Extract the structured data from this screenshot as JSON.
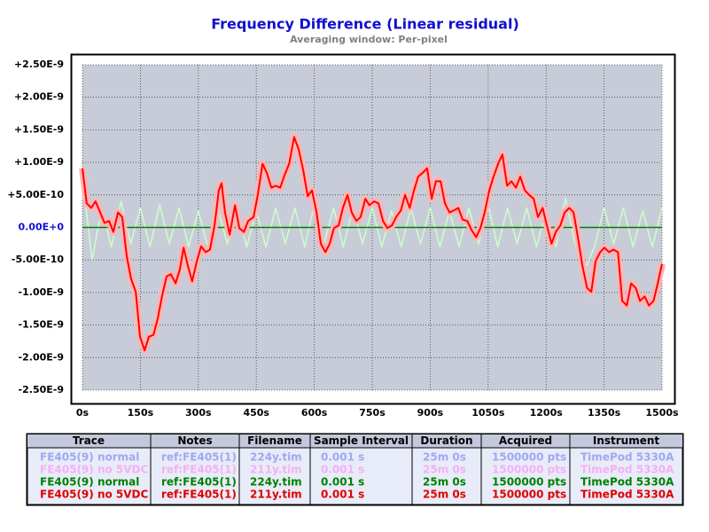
{
  "chart_data": {
    "type": "line",
    "title": "Frequency Difference (Linear residual)",
    "subtitle": "Averaging window: Per-pixel",
    "xlim": [
      0,
      1500
    ],
    "ylim": [
      -2.5e-09,
      2.5e-09
    ],
    "xticks": [
      {
        "value": 0,
        "label": "0s"
      },
      {
        "value": 150,
        "label": "150s"
      },
      {
        "value": 300,
        "label": "300s"
      },
      {
        "value": 450,
        "label": "450s"
      },
      {
        "value": 600,
        "label": "600s"
      },
      {
        "value": 750,
        "label": "750s"
      },
      {
        "value": 900,
        "label": "900s"
      },
      {
        "value": 1050,
        "label": "1050s"
      },
      {
        "value": 1200,
        "label": "1200s"
      },
      {
        "value": 1350,
        "label": "1350s"
      },
      {
        "value": 1500,
        "label": "1500s"
      }
    ],
    "yticks": [
      {
        "value": 2.5e-09,
        "label": "+2.50E-9"
      },
      {
        "value": 2e-09,
        "label": "+2.00E-9"
      },
      {
        "value": 1.5e-09,
        "label": "+1.50E-9"
      },
      {
        "value": 1e-09,
        "label": "+1.00E-9"
      },
      {
        "value": 5e-10,
        "label": "+5.00E-10"
      },
      {
        "value": 0,
        "label": "0.00E+0"
      },
      {
        "value": -5e-10,
        "label": "-5.00E-10"
      },
      {
        "value": -1e-09,
        "label": "-1.00E-9"
      },
      {
        "value": -1.5e-09,
        "label": "-1.50E-9"
      },
      {
        "value": -2e-09,
        "label": "-2.00E-9"
      },
      {
        "value": -2.5e-09,
        "label": "-2.50E-9"
      }
    ],
    "grid": true,
    "series": [
      {
        "color": "#ccffcc",
        "x": [
          0,
          25,
          50,
          75,
          100,
          125,
          150,
          175,
          200,
          225,
          250,
          275,
          300,
          325,
          350,
          375,
          400,
          425,
          450,
          475,
          500,
          525,
          550,
          575,
          600,
          625,
          650,
          675,
          700,
          725,
          750,
          775,
          800,
          825,
          850,
          875,
          900,
          925,
          950,
          975,
          1000,
          1025,
          1050,
          1075,
          1100,
          1125,
          1150,
          1175,
          1200,
          1225,
          1250,
          1275,
          1300,
          1325,
          1350,
          1375,
          1400,
          1425,
          1450,
          1475,
          1500
        ],
        "values": [
          8e-10,
          -5e-10,
          3e-10,
          -3e-10,
          4e-10,
          -2.5e-10,
          3e-10,
          -3e-10,
          3.5e-10,
          -2.5e-10,
          3e-10,
          -3e-10,
          2.5e-10,
          -3e-10,
          3e-10,
          -2.5e-10,
          3e-10,
          -3e-10,
          2.5e-10,
          -3e-10,
          3e-10,
          -2.5e-10,
          3e-10,
          -3e-10,
          3.5e-10,
          -2.5e-10,
          3e-10,
          -3e-10,
          3e-10,
          -2.5e-10,
          3e-10,
          -3e-10,
          2.5e-10,
          -3e-10,
          3e-10,
          -2.5e-10,
          3e-10,
          -3e-10,
          2.5e-10,
          -3e-10,
          3e-10,
          -2.5e-10,
          3.5e-10,
          -3e-10,
          3e-10,
          -2.5e-10,
          3e-10,
          -3e-10,
          2.5e-10,
          -3e-10,
          4.5e-10,
          -2.5e-10,
          -6.5e-10,
          -3e-10,
          3e-10,
          -2.5e-10,
          3e-10,
          -3e-10,
          2.5e-10,
          -3e-10,
          3e-10
        ]
      },
      {
        "color": "#008000",
        "x": [
          0,
          1500
        ],
        "values": [
          0,
          0
        ]
      },
      {
        "color": "#ff0000",
        "band_color": "#ffb4b4",
        "x": [
          0,
          11,
          23,
          34,
          46,
          57,
          69,
          80,
          92,
          103,
          115,
          126,
          138,
          149,
          161,
          172,
          184,
          195,
          206,
          218,
          229,
          241,
          252,
          262,
          273,
          284,
          296,
          307,
          319,
          330,
          342,
          353,
          360,
          369,
          381,
          395,
          406,
          418,
          429,
          443,
          454,
          466,
          477,
          489,
          500,
          512,
          523,
          535,
          548,
          560,
          571,
          583,
          594,
          606,
          617,
          629,
          640,
          651,
          663,
          674,
          686,
          697,
          709,
          720,
          732,
          743,
          755,
          766,
          778,
          789,
          801,
          812,
          824,
          835,
          847,
          858,
          869,
          881,
          892,
          904,
          915,
          927,
          938,
          950,
          961,
          973,
          984,
          996,
          1007,
          1019,
          1030,
          1041,
          1053,
          1064,
          1076,
          1087,
          1099,
          1110,
          1122,
          1133,
          1145,
          1156,
          1168,
          1179,
          1191,
          1202,
          1214,
          1225,
          1237,
          1248,
          1260,
          1271,
          1283,
          1294,
          1306,
          1317,
          1328,
          1340,
          1351,
          1363,
          1374,
          1386,
          1397,
          1409,
          1420,
          1432,
          1443,
          1455,
          1466,
          1478,
          1489,
          1500
        ],
        "values": [
          9.1e-10,
          3.7e-10,
          3e-10,
          4e-10,
          2.3e-10,
          7e-11,
          1e-10,
          -7e-11,
          2.3e-10,
          1.6e-10,
          -4.5e-10,
          -7.9e-10,
          -9.9e-10,
          -1.68e-09,
          -1.89e-09,
          -1.68e-09,
          -1.65e-09,
          -1.4e-09,
          -1.06e-09,
          -7.5e-10,
          -7.2e-10,
          -8.6e-10,
          -6.5e-10,
          -3.1e-10,
          -5.9e-10,
          -8.3e-10,
          -5.2e-10,
          -2.9e-10,
          -3.8e-10,
          -3.4e-10,
          3e-11,
          5.7e-10,
          6.8e-10,
          2.3e-10,
          -1.1e-10,
          3.4e-10,
          -1e-11,
          -7e-11,
          1e-10,
          1.6e-10,
          5e-10,
          9.8e-10,
          8.4e-10,
          6.1e-10,
          6.4e-10,
          6.1e-10,
          8e-10,
          9.8e-10,
          1.39e-09,
          1.19e-09,
          8.9e-10,
          4.8e-10,
          5.7e-10,
          2.3e-10,
          -2.5e-10,
          -3.8e-10,
          -2.5e-10,
          -1e-11,
          3e-11,
          3e-10,
          5e-10,
          2.3e-10,
          1e-10,
          1.6e-10,
          4.4e-10,
          3.4e-10,
          4e-10,
          3.7e-10,
          1e-10,
          -1e-11,
          3e-11,
          1.6e-10,
          2.6e-10,
          5e-10,
          3e-10,
          5.7e-10,
          7.8e-10,
          8.4e-10,
          9.1e-10,
          4.4e-10,
          7.1e-10,
          7.1e-10,
          3.7e-10,
          2.3e-10,
          2.6e-10,
          3e-10,
          1.2e-10,
          1e-10,
          -4e-11,
          -1.5e-10,
          -1e-11,
          2.3e-10,
          5.7e-10,
          7.8e-10,
          9.8e-10,
          1.12e-09,
          6.4e-10,
          7.1e-10,
          6.1e-10,
          7.8e-10,
          5.7e-10,
          5e-10,
          4.4e-10,
          1.6e-10,
          3e-10,
          3e-11,
          -2.5e-10,
          -7e-11,
          3e-11,
          2.3e-10,
          3e-10,
          2.3e-10,
          -1.8e-10,
          -5.9e-10,
          -9.3e-10,
          -9.9e-10,
          -5.2e-10,
          -3.8e-10,
          -3.1e-10,
          -3.8e-10,
          -3.4e-10,
          -3.8e-10,
          -1.13e-09,
          -1.2e-09,
          -8.6e-10,
          -9.3e-10,
          -1.13e-09,
          -1.06e-09,
          -1.2e-09,
          -1.13e-09,
          -8.6e-10,
          -5.6e-10
        ]
      }
    ]
  },
  "table": {
    "header": [
      "Trace",
      "Notes",
      "Filename",
      "Sample Interval",
      "Duration",
      "Acquired",
      "Instrument"
    ],
    "row_colors": [
      "#a0a8f0",
      "#f4b0f4",
      "#008000",
      "#e00000"
    ],
    "rows": [
      [
        "FE405(9) normal",
        "ref:FE405(1)",
        "224y.tim",
        "0.001 s",
        "25m 0s",
        "1500000 pts",
        "TimePod 5330A"
      ],
      [
        "FE405(9) no 5VDC",
        "ref:FE405(1)",
        "211y.tim",
        "0.001 s",
        "25m 0s",
        "1500000 pts",
        "TimePod 5330A"
      ],
      [
        "FE405(9) normal",
        "ref:FE405(1)",
        "224y.tim",
        "0.001 s",
        "25m 0s",
        "1500000 pts",
        "TimePod 5330A"
      ],
      [
        "FE405(9) no 5VDC",
        "ref:FE405(1)",
        "211y.tim",
        "0.001 s",
        "25m 0s",
        "1500000 pts",
        "TimePod 5330A"
      ]
    ]
  }
}
